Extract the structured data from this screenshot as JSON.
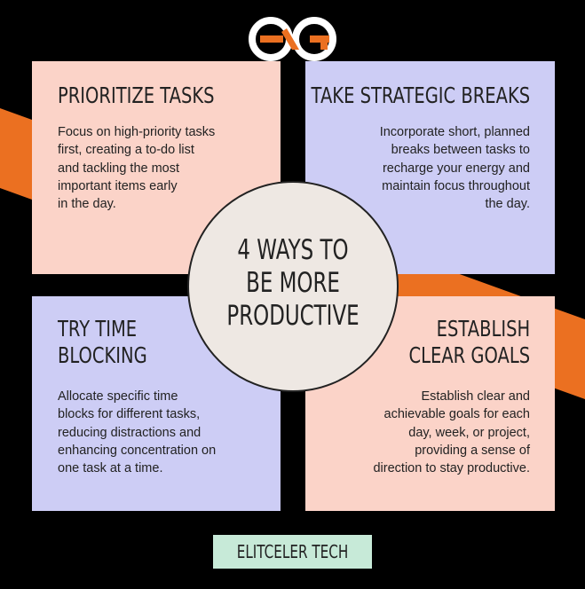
{
  "colors": {
    "background": "#000000",
    "accent_stripe": "#EB7021",
    "peach_card": "#FBD3C8",
    "lavender_card": "#CDCDF5",
    "center_circle": "#EEE8E3",
    "brand_box": "#C7EAD8"
  },
  "logo": {
    "icon": "eg-monogram-icon"
  },
  "center": {
    "line1": "4 WAYS TO",
    "line2": "BE MORE",
    "line3": "PRODUCTIVE"
  },
  "cards": [
    {
      "title": "PRIORITIZE TASKS",
      "lines": [
        "Focus on high-priority tasks",
        "first, creating a to-do list",
        "and tackling the most",
        "important items early",
        "in the day."
      ]
    },
    {
      "title": "TAKE STRATEGIC BREAKS",
      "lines": [
        "Incorporate short, planned",
        "breaks between tasks to",
        "recharge your energy and",
        "maintain focus throughout",
        "the day."
      ]
    },
    {
      "title_line1": "TRY TIME",
      "title_line2": "BLOCKING",
      "lines": [
        "Allocate specific time",
        "blocks for different tasks,",
        "reducing distractions and",
        "enhancing concentration on",
        "one task at a time."
      ]
    },
    {
      "title_line1": "ESTABLISH",
      "title_line2": "CLEAR GOALS",
      "lines": [
        "Establish clear and",
        "achievable goals for each",
        "day, week, or project,",
        "providing a sense of",
        "direction to stay productive."
      ]
    }
  ],
  "brand": {
    "label": "ELITCELER TECH"
  }
}
